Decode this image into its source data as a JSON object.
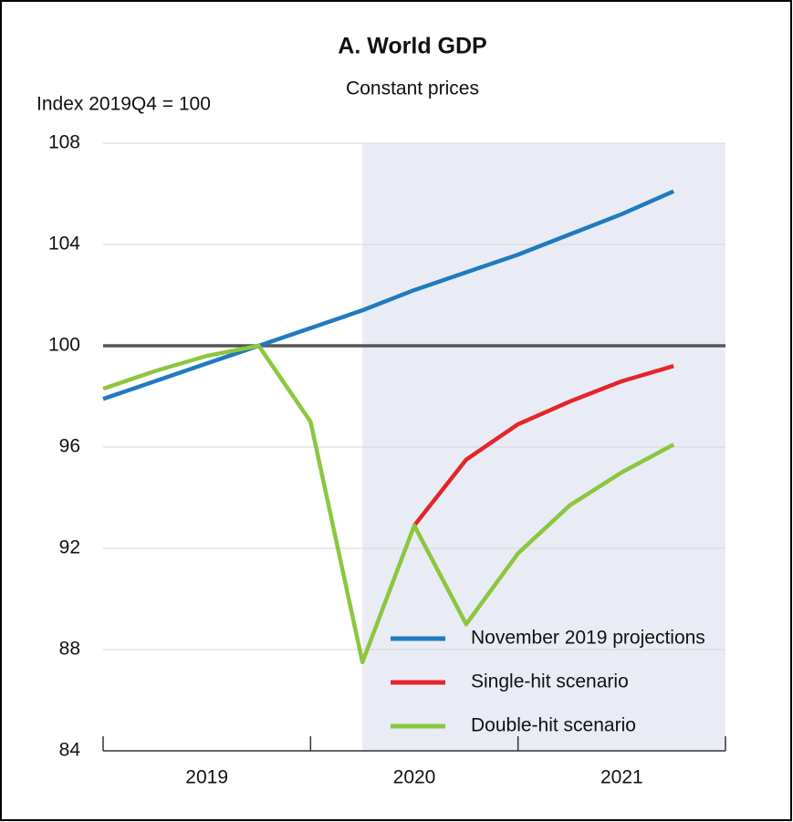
{
  "chart_data": {
    "type": "line",
    "title": "A. World GDP",
    "subtitle": "Constant prices",
    "y_label": "Index 2019Q4 = 100",
    "x": [
      2019,
      2019.25,
      2019.5,
      2019.75,
      2020,
      2020.25,
      2020.5,
      2020.75,
      2021,
      2021.25,
      2021.5,
      2021.75
    ],
    "xlim": [
      2019,
      2022
    ],
    "xticks": [
      {
        "value": 2019.5,
        "label": "2019"
      },
      {
        "value": 2020.5,
        "label": "2020"
      },
      {
        "value": 2021.5,
        "label": "2021"
      }
    ],
    "xminor_ticks": [
      2019,
      2020,
      2021,
      2022
    ],
    "ylim": [
      84,
      108
    ],
    "yticks": [
      84,
      88,
      92,
      96,
      100,
      104,
      108
    ],
    "grid": true,
    "reference_line": 100,
    "shaded_range": [
      2020.25,
      2022
    ],
    "legend": "lower right",
    "series": [
      {
        "name": "November 2019 projections",
        "color": "#1f7ac0",
        "values": [
          97.9,
          98.6,
          99.3,
          100,
          100.7,
          101.4,
          102.2,
          102.9,
          103.6,
          104.4,
          105.2,
          106.1
        ]
      },
      {
        "name": "Single-hit scenario",
        "color": "#e3262b",
        "values": [
          null,
          null,
          null,
          null,
          null,
          null,
          92.9,
          95.5,
          96.9,
          97.8,
          98.6,
          99.2
        ]
      },
      {
        "name": "Double-hit scenario",
        "color": "#8cc63f",
        "values": [
          98.3,
          99.0,
          99.6,
          100,
          97.0,
          87.5,
          92.9,
          89.0,
          91.8,
          93.7,
          95.0,
          96.1
        ]
      }
    ]
  }
}
